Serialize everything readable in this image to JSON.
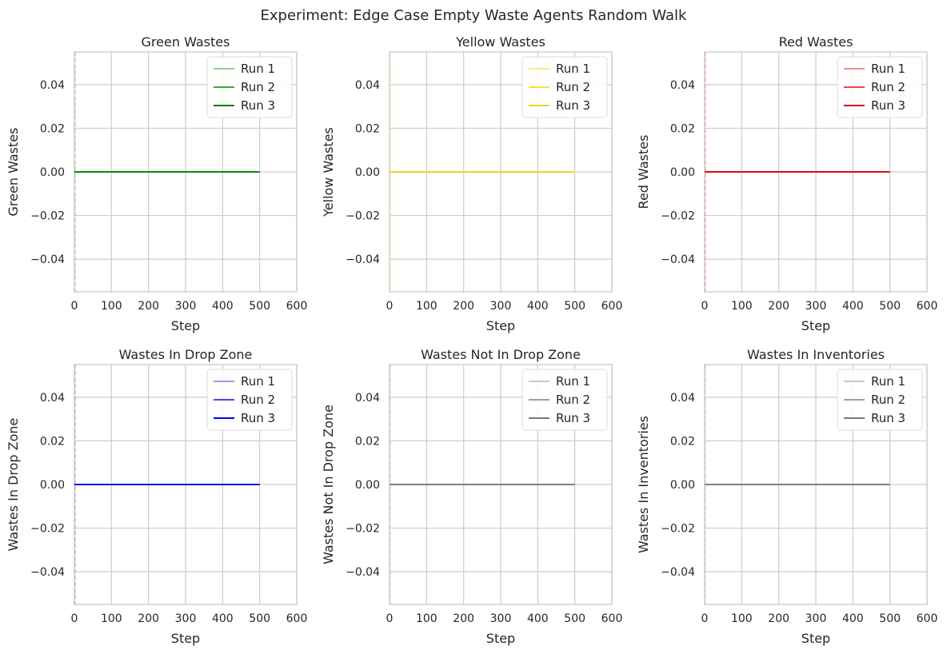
{
  "suptitle": "Experiment: Edge Case Empty Waste Agents Random Walk",
  "chart_data": [
    {
      "type": "line",
      "title": "Green Wastes",
      "xlabel": "Step",
      "ylabel": "Green Wastes",
      "xlim": [
        0,
        600
      ],
      "ylim": [
        -0.055,
        0.055
      ],
      "xticks": [
        0,
        100,
        200,
        300,
        400,
        500,
        600
      ],
      "xtick_labels": [
        "0",
        "100",
        "200",
        "300",
        "400",
        "500",
        "600"
      ],
      "yticks": [
        0.04,
        0.02,
        0.0,
        -0.02,
        -0.04
      ],
      "ytick_labels": [
        "0.04",
        "0.02",
        "0.00",
        "−0.02",
        "−0.04"
      ],
      "grid": true,
      "legend_position": "top-right",
      "series": [
        {
          "name": "Run 1",
          "color": "#8fce8f",
          "x": [
            0,
            500
          ],
          "y": [
            0,
            0
          ]
        },
        {
          "name": "Run 2",
          "color": "#3cab3c",
          "x": [
            0,
            500
          ],
          "y": [
            0,
            0
          ]
        },
        {
          "name": "Run 3",
          "color": "#008000",
          "x": [
            0,
            500
          ],
          "y": [
            0,
            0
          ]
        }
      ]
    },
    {
      "type": "line",
      "title": "Yellow Wastes",
      "xlabel": "Step",
      "ylabel": "Yellow Wastes",
      "xlim": [
        0,
        600
      ],
      "ylim": [
        -0.055,
        0.055
      ],
      "xticks": [
        0,
        100,
        200,
        300,
        400,
        500,
        600
      ],
      "xtick_labels": [
        "0",
        "100",
        "200",
        "300",
        "400",
        "500",
        "600"
      ],
      "yticks": [
        0.04,
        0.02,
        0.0,
        -0.02,
        -0.04
      ],
      "ytick_labels": [
        "0.04",
        "0.02",
        "0.00",
        "−0.02",
        "−0.04"
      ],
      "grid": true,
      "legend_position": "top-right",
      "series": [
        {
          "name": "Run 1",
          "color": "#fbe98a",
          "x": [
            0,
            500
          ],
          "y": [
            0,
            0
          ]
        },
        {
          "name": "Run 2",
          "color": "#f9de4a",
          "x": [
            0,
            500
          ],
          "y": [
            0,
            0
          ]
        },
        {
          "name": "Run 3",
          "color": "#f5d020",
          "x": [
            0,
            500
          ],
          "y": [
            0,
            0
          ]
        }
      ]
    },
    {
      "type": "line",
      "title": "Red Wastes",
      "xlabel": "Step",
      "ylabel": "Red Wastes",
      "xlim": [
        0,
        600
      ],
      "ylim": [
        -0.055,
        0.055
      ],
      "xticks": [
        0,
        100,
        200,
        300,
        400,
        500,
        600
      ],
      "xtick_labels": [
        "0",
        "100",
        "200",
        "300",
        "400",
        "500",
        "600"
      ],
      "yticks": [
        0.04,
        0.02,
        0.0,
        -0.02,
        -0.04
      ],
      "ytick_labels": [
        "0.04",
        "0.02",
        "0.00",
        "−0.02",
        "−0.04"
      ],
      "grid": true,
      "legend_position": "top-right",
      "series": [
        {
          "name": "Run 1",
          "color": "#f29090",
          "x": [
            0,
            500
          ],
          "y": [
            0,
            0
          ]
        },
        {
          "name": "Run 2",
          "color": "#e84a4a",
          "x": [
            0,
            500
          ],
          "y": [
            0,
            0
          ]
        },
        {
          "name": "Run 3",
          "color": "#dd0000",
          "x": [
            0,
            500
          ],
          "y": [
            0,
            0
          ]
        }
      ]
    },
    {
      "type": "line",
      "title": "Wastes In Drop Zone",
      "xlabel": "Step",
      "ylabel": "Wastes In Drop Zone",
      "xlim": [
        0,
        600
      ],
      "ylim": [
        -0.055,
        0.055
      ],
      "xticks": [
        0,
        100,
        200,
        300,
        400,
        500,
        600
      ],
      "xtick_labels": [
        "0",
        "100",
        "200",
        "300",
        "400",
        "500",
        "600"
      ],
      "yticks": [
        0.04,
        0.02,
        0.0,
        -0.02,
        -0.04
      ],
      "ytick_labels": [
        "0.04",
        "0.02",
        "0.00",
        "−0.02",
        "−0.04"
      ],
      "grid": true,
      "legend_position": "top-right",
      "series": [
        {
          "name": "Run 1",
          "color": "#9a9af0",
          "x": [
            0,
            500
          ],
          "y": [
            0,
            0
          ]
        },
        {
          "name": "Run 2",
          "color": "#4848e8",
          "x": [
            0,
            500
          ],
          "y": [
            0,
            0
          ]
        },
        {
          "name": "Run 3",
          "color": "#0000ee",
          "x": [
            0,
            500
          ],
          "y": [
            0,
            0
          ]
        }
      ]
    },
    {
      "type": "line",
      "title": "Wastes Not In Drop Zone",
      "xlabel": "Step",
      "ylabel": "Wastes Not In Drop Zone",
      "xlim": [
        0,
        600
      ],
      "ylim": [
        -0.055,
        0.055
      ],
      "xticks": [
        0,
        100,
        200,
        300,
        400,
        500,
        600
      ],
      "xtick_labels": [
        "0",
        "100",
        "200",
        "300",
        "400",
        "500",
        "600"
      ],
      "yticks": [
        0.04,
        0.02,
        0.0,
        -0.02,
        -0.04
      ],
      "ytick_labels": [
        "0.04",
        "0.02",
        "0.00",
        "−0.02",
        "−0.04"
      ],
      "grid": true,
      "legend_position": "top-right",
      "series": [
        {
          "name": "Run 1",
          "color": "#c8c8c8",
          "x": [
            0,
            500
          ],
          "y": [
            0,
            0
          ]
        },
        {
          "name": "Run 2",
          "color": "#9e9e9e",
          "x": [
            0,
            500
          ],
          "y": [
            0,
            0
          ]
        },
        {
          "name": "Run 3",
          "color": "#7a7a7a",
          "x": [
            0,
            500
          ],
          "y": [
            0,
            0
          ]
        }
      ]
    },
    {
      "type": "line",
      "title": "Wastes In Inventories",
      "xlabel": "Step",
      "ylabel": "Wastes In Inventories",
      "xlim": [
        0,
        600
      ],
      "ylim": [
        -0.055,
        0.055
      ],
      "xticks": [
        0,
        100,
        200,
        300,
        400,
        500,
        600
      ],
      "xtick_labels": [
        "0",
        "100",
        "200",
        "300",
        "400",
        "500",
        "600"
      ],
      "yticks": [
        0.04,
        0.02,
        0.0,
        -0.02,
        -0.04
      ],
      "ytick_labels": [
        "0.04",
        "0.02",
        "0.00",
        "−0.02",
        "−0.04"
      ],
      "grid": true,
      "legend_position": "top-right",
      "series": [
        {
          "name": "Run 1",
          "color": "#c8c8c8",
          "x": [
            0,
            500
          ],
          "y": [
            0,
            0
          ]
        },
        {
          "name": "Run 2",
          "color": "#9e9e9e",
          "x": [
            0,
            500
          ],
          "y": [
            0,
            0
          ]
        },
        {
          "name": "Run 3",
          "color": "#7a7a7a",
          "x": [
            0,
            500
          ],
          "y": [
            0,
            0
          ]
        }
      ]
    }
  ]
}
